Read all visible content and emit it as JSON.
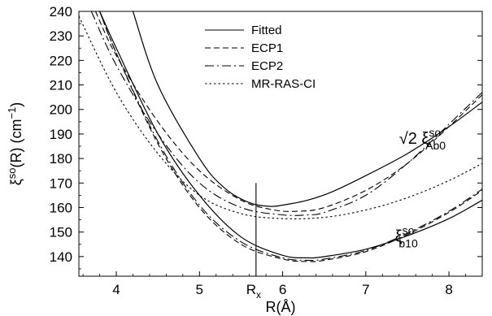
{
  "chart_data": {
    "type": "line",
    "xlabel": "R(Å)",
    "ylabel": "ξso(R) (cm−1)",
    "ylabel_parts": {
      "xi": "ξ",
      "sup": "so",
      "rest": "(R) (cm",
      "exp": "−1",
      "close": ")"
    },
    "xlim": [
      3.55,
      8.4
    ],
    "ylim": [
      132,
      240
    ],
    "x_ticks": [
      4,
      5,
      6,
      7,
      8
    ],
    "y_ticks": [
      140,
      150,
      160,
      170,
      180,
      190,
      200,
      210,
      220,
      230,
      240
    ],
    "grid": false,
    "legend_position": "top-center",
    "series": [
      {
        "name": "Fitted",
        "dash": "solid",
        "group": "Ab0",
        "x": [
          4.2,
          4.5,
          5.0,
          5.3,
          5.6,
          5.85,
          6.0,
          6.3,
          6.6,
          7.0,
          7.5,
          8.0,
          8.4
        ],
        "y": [
          240,
          210,
          180,
          168,
          162,
          160.5,
          161,
          163,
          166.5,
          173,
          182,
          193,
          203
        ]
      },
      {
        "name": "ECP1",
        "dash": "dashed",
        "group": "Ab0",
        "x": [
          3.75,
          4.0,
          4.5,
          5.0,
          5.5,
          5.9,
          6.2,
          6.5,
          7.0,
          7.5,
          8.0,
          8.4
        ],
        "y": [
          240,
          222,
          195,
          175,
          163,
          159,
          158.5,
          160,
          167,
          178,
          193,
          206
        ]
      },
      {
        "name": "ECP2",
        "dash": "dashdot",
        "group": "Ab0",
        "x": [
          3.7,
          4.0,
          4.5,
          5.0,
          5.5,
          6.0,
          6.3,
          6.5,
          7.0,
          7.5,
          8.0,
          8.4
        ],
        "y": [
          240,
          218,
          190,
          170,
          160,
          157,
          157,
          158,
          165,
          178,
          194,
          207
        ]
      },
      {
        "name": "MR-RAS-CI",
        "dash": "dotted",
        "group": "Ab0",
        "x": [
          3.55,
          4.0,
          4.5,
          5.0,
          5.5,
          6.0,
          6.5,
          7.0,
          7.5,
          8.0,
          8.4
        ],
        "y": [
          238,
          207,
          182,
          165,
          157.5,
          155.5,
          156,
          159,
          164,
          171,
          178
        ]
      },
      {
        "name": "Fitted",
        "dash": "solid",
        "group": "b10",
        "x": [
          3.8,
          4.0,
          4.5,
          5.0,
          5.5,
          6.0,
          6.3,
          6.5,
          7.0,
          7.5,
          8.0,
          8.4
        ],
        "y": [
          240,
          225,
          190,
          165,
          148,
          140.5,
          139.5,
          140,
          143,
          148.5,
          155.5,
          163
        ]
      },
      {
        "name": "ECP1",
        "dash": "dashed",
        "group": "b10",
        "x": [
          3.8,
          4.0,
          4.5,
          5.0,
          5.5,
          6.0,
          6.3,
          6.5,
          7.0,
          7.5,
          8.0,
          8.4
        ],
        "y": [
          240,
          223,
          186,
          160,
          145,
          139,
          138,
          138.5,
          142,
          149,
          158,
          167
        ]
      },
      {
        "name": "ECP2",
        "dash": "dashdot",
        "group": "b10",
        "x": [
          3.8,
          4.0,
          4.5,
          5.0,
          5.5,
          6.0,
          6.3,
          6.5,
          7.0,
          7.5,
          8.0,
          8.4
        ],
        "y": [
          240,
          223,
          187,
          161,
          146,
          139.5,
          138.5,
          139,
          142.5,
          149.5,
          158.5,
          167.5
        ]
      }
    ],
    "legend": [
      "Fitted",
      "ECP1",
      "ECP2",
      "MR-RAS-CI"
    ],
    "annotations": {
      "ab0": {
        "prefix": "√2 ξ",
        "sup": "so",
        "sub": "Ab0",
        "x": 7.4,
        "y": 186
      },
      "b10": {
        "prefix": "ξ",
        "sup": "so",
        "sub": "b10",
        "x": 7.35,
        "y": 146
      },
      "rx": {
        "label": "R",
        "sub": "x",
        "x": 5.68,
        "y_top": 170
      }
    }
  }
}
